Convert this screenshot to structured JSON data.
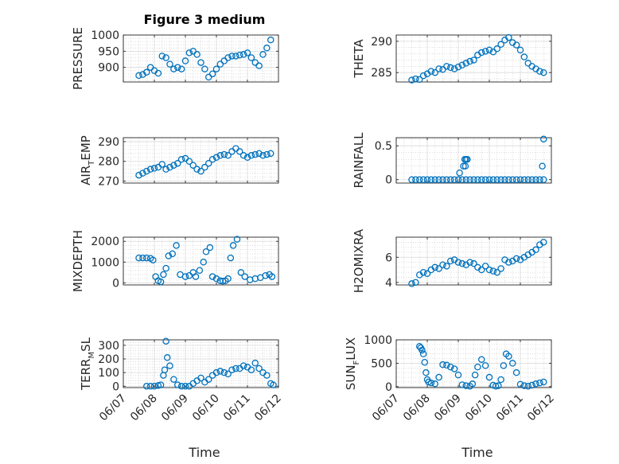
{
  "figure": {
    "title": "Figure 3 medium",
    "xlabel": "Time",
    "marker_color": "#0072BD",
    "grid_color": "#c8c8c8"
  },
  "chart_data": [
    {
      "type": "scatter",
      "ylabel": "PRESSURE",
      "ylim": [
        855,
        1000
      ],
      "xlim": [
        "06/07",
        "06/12"
      ],
      "yticks": [
        900,
        950,
        1000
      ],
      "xticks": [
        "06/07",
        "06/08",
        "06/09",
        "06/10",
        "06/11",
        "06/12"
      ],
      "show_xticklabels": false,
      "x": [
        "06/07 12:00",
        "06/07 15:00",
        "06/07 18:00",
        "06/07 21:00",
        "06/08 00:00",
        "06/08 03:00",
        "06/08 06:00",
        "06/08 09:00",
        "06/08 12:00",
        "06/08 15:00",
        "06/08 18:00",
        "06/08 21:00",
        "06/09 00:00",
        "06/09 03:00",
        "06/09 06:00",
        "06/09 09:00",
        "06/09 12:00",
        "06/09 15:00",
        "06/09 18:00",
        "06/09 21:00",
        "06/10 00:00",
        "06/10 03:00",
        "06/10 06:00",
        "06/10 09:00",
        "06/10 12:00",
        "06/10 15:00",
        "06/10 18:00",
        "06/10 21:00",
        "06/11 00:00",
        "06/11 03:00",
        "06/11 06:00",
        "06/11 09:00",
        "06/11 12:00",
        "06/11 15:00",
        "06/11 18:00"
      ],
      "y": [
        875,
        878,
        885,
        900,
        890,
        882,
        935,
        930,
        910,
        895,
        900,
        895,
        920,
        945,
        950,
        940,
        915,
        895,
        870,
        880,
        895,
        910,
        920,
        930,
        935,
        935,
        938,
        940,
        945,
        930,
        915,
        905,
        940,
        960,
        985
      ]
    },
    {
      "type": "scatter",
      "ylabel": "THETA",
      "ylim": [
        283.5,
        291
      ],
      "xlim": [
        "06/07",
        "06/12"
      ],
      "yticks": [
        285,
        290
      ],
      "xticks": [
        "06/07",
        "06/08",
        "06/09",
        "06/10",
        "06/11",
        "06/12"
      ],
      "show_xticklabels": false,
      "x": [
        "06/07 12:00",
        "06/07 15:00",
        "06/07 18:00",
        "06/07 21:00",
        "06/08 00:00",
        "06/08 03:00",
        "06/08 06:00",
        "06/08 09:00",
        "06/08 12:00",
        "06/08 15:00",
        "06/08 18:00",
        "06/08 21:00",
        "06/09 00:00",
        "06/09 03:00",
        "06/09 06:00",
        "06/09 09:00",
        "06/09 12:00",
        "06/09 15:00",
        "06/09 18:00",
        "06/09 21:00",
        "06/10 00:00",
        "06/10 03:00",
        "06/10 06:00",
        "06/10 09:00",
        "06/10 12:00",
        "06/10 15:00",
        "06/10 18:00",
        "06/10 21:00",
        "06/11 00:00",
        "06/11 03:00",
        "06/11 06:00",
        "06/11 09:00",
        "06/11 12:00",
        "06/11 15:00",
        "06/11 18:00"
      ],
      "y": [
        283.8,
        284.0,
        283.9,
        284.5,
        284.8,
        285.2,
        285.0,
        285.6,
        285.5,
        286.0,
        285.8,
        285.6,
        285.9,
        286.2,
        286.5,
        286.8,
        287.0,
        287.8,
        288.2,
        288.4,
        288.6,
        288.3,
        288.8,
        289.5,
        290.2,
        290.6,
        289.8,
        289.4,
        288.6,
        287.5,
        286.5,
        286.0,
        285.6,
        285.2,
        285.0
      ]
    },
    {
      "type": "scatter",
      "ylabel": "AIR_TEMP",
      "ylim": [
        269,
        292
      ],
      "xlim": [
        "06/07",
        "06/12"
      ],
      "yticks": [
        270,
        280,
        290
      ],
      "xticks": [
        "06/07",
        "06/08",
        "06/09",
        "06/10",
        "06/11",
        "06/12"
      ],
      "show_xticklabels": false,
      "x": [
        "06/07 12:00",
        "06/07 15:00",
        "06/07 18:00",
        "06/07 21:00",
        "06/08 00:00",
        "06/08 03:00",
        "06/08 06:00",
        "06/08 09:00",
        "06/08 12:00",
        "06/08 15:00",
        "06/08 18:00",
        "06/08 21:00",
        "06/09 00:00",
        "06/09 03:00",
        "06/09 06:00",
        "06/09 09:00",
        "06/09 12:00",
        "06/09 15:00",
        "06/09 18:00",
        "06/09 21:00",
        "06/10 00:00",
        "06/10 03:00",
        "06/10 06:00",
        "06/10 09:00",
        "06/10 12:00",
        "06/10 15:00",
        "06/10 18:00",
        "06/10 21:00",
        "06/11 00:00",
        "06/11 03:00",
        "06/11 06:00",
        "06/11 09:00",
        "06/11 12:00",
        "06/11 15:00",
        "06/11 18:00"
      ],
      "y": [
        273,
        274,
        275,
        276,
        276.5,
        277,
        278.5,
        276,
        277,
        278,
        279,
        281,
        281.5,
        280,
        278,
        276,
        275,
        277,
        279,
        281,
        282,
        283,
        283.5,
        283,
        285,
        286.5,
        285,
        283,
        282,
        283,
        283.5,
        284,
        283,
        283.5,
        284
      ]
    },
    {
      "type": "scatter",
      "ylabel": "RAINFALL",
      "ylim": [
        -0.05,
        0.62
      ],
      "xlim": [
        "06/07",
        "06/12"
      ],
      "yticks": [
        0,
        0.5
      ],
      "xticks": [
        "06/07",
        "06/08",
        "06/09",
        "06/10",
        "06/11",
        "06/12"
      ],
      "show_xticklabels": false,
      "x": [
        "06/07 12:00",
        "06/07 15:00",
        "06/07 18:00",
        "06/07 21:00",
        "06/08 00:00",
        "06/08 03:00",
        "06/08 06:00",
        "06/08 09:00",
        "06/08 12:00",
        "06/08 15:00",
        "06/08 18:00",
        "06/08 21:00",
        "06/09 00:00",
        "06/09 03:00",
        "06/09 06:00",
        "06/09 09:00",
        "06/09 12:00",
        "06/09 15:00",
        "06/09 18:00",
        "06/09 21:00",
        "06/10 00:00",
        "06/10 03:00",
        "06/10 06:00",
        "06/10 09:00",
        "06/10 12:00",
        "06/10 15:00",
        "06/10 18:00",
        "06/10 21:00",
        "06/11 00:00",
        "06/11 03:00",
        "06/11 06:00",
        "06/11 09:00",
        "06/11 12:00",
        "06/11 15:00",
        "06/11 18:00",
        "06/09 01:00",
        "06/09 04:00",
        "06/09 05:00",
        "06/09 06:00",
        "06/09 07:00",
        "06/09 05:30",
        "06/11 17:00",
        "06/11 18:00"
      ],
      "y": [
        0,
        0,
        0,
        0,
        0,
        0,
        0,
        0,
        0,
        0,
        0,
        0,
        0,
        0,
        0,
        0,
        0,
        0,
        0,
        0,
        0,
        0,
        0,
        0,
        0,
        0,
        0,
        0,
        0,
        0,
        0,
        0,
        0,
        0,
        0,
        0.1,
        0.2,
        0.3,
        0.3,
        0.3,
        0.2,
        0.2,
        0.6
      ]
    },
    {
      "type": "scatter",
      "ylabel": "MIXDEPTH",
      "ylim": [
        -100,
        2200
      ],
      "xlim": [
        "06/07",
        "06/12"
      ],
      "yticks": [
        0,
        1000,
        2000
      ],
      "xticks": [
        "06/07",
        "06/08",
        "06/09",
        "06/10",
        "06/11",
        "06/12"
      ],
      "show_xticklabels": false,
      "x": [
        "06/07 12:00",
        "06/07 15:00",
        "06/07 18:00",
        "06/07 21:00",
        "06/07 23:00",
        "06/08 01:00",
        "06/08 03:00",
        "06/08 05:00",
        "06/08 07:00",
        "06/08 09:00",
        "06/08 11:00",
        "06/08 14:00",
        "06/08 17:00",
        "06/08 20:00",
        "06/09 00:00",
        "06/09 03:00",
        "06/09 06:00",
        "06/09 08:00",
        "06/09 11:00",
        "06/09 14:00",
        "06/09 16:00",
        "06/09 19:00",
        "06/09 21:00",
        "06/10 00:00",
        "06/10 03:00",
        "06/10 05:00",
        "06/10 07:00",
        "06/10 09:00",
        "06/10 11:00",
        "06/10 13:00",
        "06/10 16:00",
        "06/10 19:00",
        "06/10 22:00",
        "06/11 02:00",
        "06/11 06:00",
        "06/11 10:00",
        "06/11 14:00",
        "06/11 17:00",
        "06/11 19:00"
      ],
      "y": [
        1200,
        1200,
        1200,
        1180,
        1100,
        300,
        100,
        50,
        400,
        700,
        1300,
        1400,
        1800,
        400,
        300,
        350,
        500,
        300,
        600,
        1000,
        1500,
        1700,
        300,
        200,
        100,
        80,
        100,
        200,
        1200,
        1800,
        2100,
        500,
        300,
        150,
        200,
        250,
        350,
        400,
        300
      ]
    },
    {
      "type": "scatter",
      "ylabel": "H2OMIXRA",
      "ylim": [
        3.8,
        7.6
      ],
      "xlim": [
        "06/07",
        "06/12"
      ],
      "yticks": [
        4,
        6
      ],
      "xticks": [
        "06/07",
        "06/08",
        "06/09",
        "06/10",
        "06/11",
        "06/12"
      ],
      "show_xticklabels": false,
      "x": [
        "06/07 12:00",
        "06/07 15:00",
        "06/07 18:00",
        "06/07 21:00",
        "06/08 00:00",
        "06/08 03:00",
        "06/08 06:00",
        "06/08 09:00",
        "06/08 12:00",
        "06/08 15:00",
        "06/08 18:00",
        "06/08 21:00",
        "06/09 00:00",
        "06/09 03:00",
        "06/09 06:00",
        "06/09 09:00",
        "06/09 12:00",
        "06/09 15:00",
        "06/09 18:00",
        "06/09 21:00",
        "06/10 00:00",
        "06/10 03:00",
        "06/10 06:00",
        "06/10 09:00",
        "06/10 12:00",
        "06/10 15:00",
        "06/10 18:00",
        "06/10 21:00",
        "06/11 00:00",
        "06/11 03:00",
        "06/11 06:00",
        "06/11 09:00",
        "06/11 12:00",
        "06/11 15:00",
        "06/11 18:00"
      ],
      "y": [
        3.9,
        4.0,
        4.6,
        4.8,
        4.7,
        5.0,
        5.2,
        5.1,
        5.4,
        5.3,
        5.7,
        5.8,
        5.6,
        5.5,
        5.4,
        5.6,
        5.5,
        5.2,
        5.0,
        5.3,
        5.0,
        4.9,
        4.8,
        5.1,
        5.8,
        5.6,
        5.7,
        5.9,
        5.8,
        6.0,
        6.2,
        6.4,
        6.6,
        7.0,
        7.2
      ]
    },
    {
      "type": "scatter",
      "ylabel": "TERR_MSL",
      "ylim": [
        -10,
        340
      ],
      "xlim": [
        "06/07",
        "06/12"
      ],
      "yticks": [
        0,
        100,
        200,
        300
      ],
      "xticks": [
        "06/07",
        "06/08",
        "06/09",
        "06/10",
        "06/11",
        "06/12"
      ],
      "show_xticklabels": true,
      "x": [
        "06/07 18:00",
        "06/07 21:00",
        "06/08 00:00",
        "06/08 03:00",
        "06/08 05:00",
        "06/08 07:00",
        "06/08 08:00",
        "06/08 09:00",
        "06/08 10:00",
        "06/08 12:00",
        "06/08 15:00",
        "06/08 18:00",
        "06/08 21:00",
        "06/09 00:00",
        "06/09 03:00",
        "06/09 06:00",
        "06/09 09:00",
        "06/09 12:00",
        "06/09 15:00",
        "06/09 18:00",
        "06/09 21:00",
        "06/10 00:00",
        "06/10 03:00",
        "06/10 06:00",
        "06/10 09:00",
        "06/10 12:00",
        "06/10 15:00",
        "06/10 18:00",
        "06/10 21:00",
        "06/11 00:00",
        "06/11 03:00",
        "06/11 06:00",
        "06/11 09:00",
        "06/11 12:00",
        "06/11 15:00",
        "06/11 18:00",
        "06/11 20:00"
      ],
      "y": [
        0,
        0,
        0,
        5,
        10,
        80,
        120,
        330,
        210,
        150,
        50,
        10,
        0,
        0,
        0,
        20,
        40,
        60,
        30,
        50,
        80,
        100,
        110,
        100,
        90,
        120,
        130,
        130,
        150,
        140,
        120,
        170,
        130,
        100,
        80,
        20,
        10
      ]
    },
    {
      "type": "scatter",
      "ylabel": "SUN_FLUX",
      "ylim": [
        -20,
        1000
      ],
      "xlim": [
        "06/07",
        "06/12"
      ],
      "yticks": [
        0,
        500,
        1000
      ],
      "xticks": [
        "06/07",
        "06/08",
        "06/09",
        "06/10",
        "06/11",
        "06/12"
      ],
      "show_xticklabels": true,
      "x": [
        "06/07 18:00",
        "06/07 19:00",
        "06/07 20:00",
        "06/07 21:00",
        "06/07 22:00",
        "06/07 23:00",
        "06/08 00:00",
        "06/08 01:00",
        "06/08 03:00",
        "06/08 06:00",
        "06/08 09:00",
        "06/08 12:00",
        "06/08 15:00",
        "06/08 18:00",
        "06/08 21:00",
        "06/09 00:00",
        "06/09 03:00",
        "06/09 06:00",
        "06/09 09:00",
        "06/09 11:00",
        "06/09 13:00",
        "06/09 15:00",
        "06/09 18:00",
        "06/09 21:00",
        "06/10 00:00",
        "06/10 03:00",
        "06/10 05:00",
        "06/10 07:00",
        "06/10 09:00",
        "06/10 11:00",
        "06/10 13:00",
        "06/10 15:00",
        "06/10 18:00",
        "06/10 21:00",
        "06/11 00:00",
        "06/11 03:00",
        "06/11 06:00",
        "06/11 09:00",
        "06/11 12:00",
        "06/11 15:00",
        "06/11 18:00"
      ],
      "y": [
        860,
        830,
        780,
        700,
        520,
        300,
        150,
        100,
        80,
        60,
        200,
        470,
        460,
        420,
        380,
        250,
        40,
        20,
        10,
        60,
        250,
        420,
        580,
        450,
        200,
        30,
        10,
        20,
        150,
        450,
        700,
        650,
        500,
        300,
        50,
        20,
        10,
        30,
        60,
        80,
        100
      ]
    }
  ]
}
